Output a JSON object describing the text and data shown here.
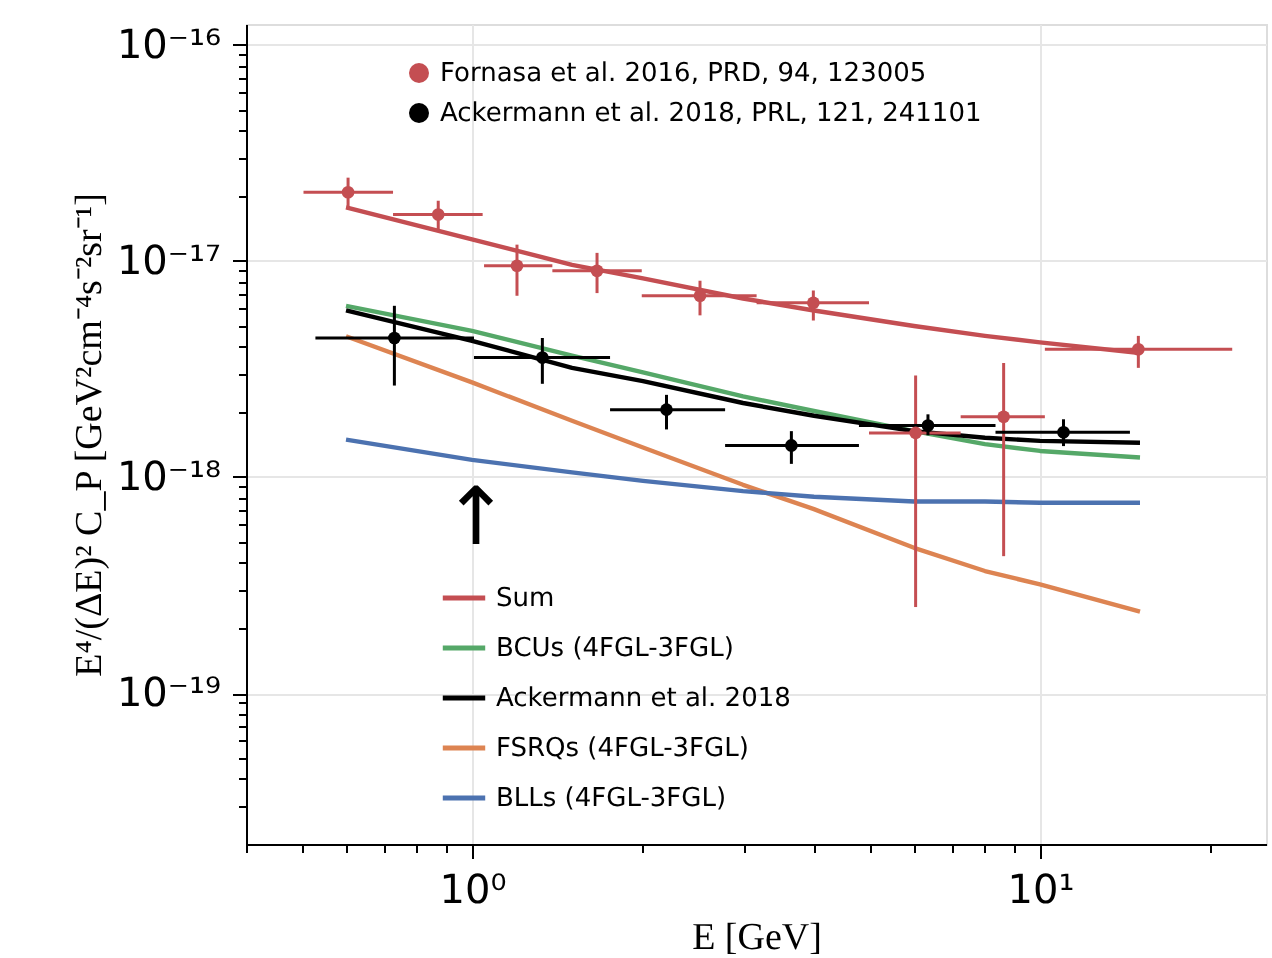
{
  "chart_data": {
    "type": "line",
    "xlabel": "E  [GeV]",
    "ylabel": "E⁴/(ΔE)² C_P  [GeV²cm⁻⁴s⁻²sr⁻¹]",
    "log": "xy",
    "grid": true,
    "legend": "bottom left",
    "xlim": [
      0.4,
      25
    ],
    "ylim": [
      2e-20,
      1.25e-16
    ],
    "xticks": [
      {
        "value": 0.4,
        "label": null
      },
      {
        "value": 0.5,
        "label": null
      },
      {
        "value": 0.6,
        "label": null
      },
      {
        "value": 0.7,
        "label": null
      },
      {
        "value": 0.8,
        "label": null
      },
      {
        "value": 0.9,
        "label": null
      },
      {
        "value": 1,
        "label": "10⁰"
      },
      {
        "value": 2,
        "label": null
      },
      {
        "value": 3,
        "label": null
      },
      {
        "value": 4,
        "label": null
      },
      {
        "value": 5,
        "label": null
      },
      {
        "value": 6,
        "label": null
      },
      {
        "value": 7,
        "label": null
      },
      {
        "value": 8,
        "label": null
      },
      {
        "value": 9,
        "label": null
      },
      {
        "value": 10,
        "label": "10¹"
      },
      {
        "value": 20,
        "label": null
      }
    ],
    "yticks": [
      {
        "value": 3e-20,
        "label": null
      },
      {
        "value": 4e-20,
        "label": null
      },
      {
        "value": 5e-20,
        "label": null
      },
      {
        "value": 6e-20,
        "label": null
      },
      {
        "value": 7e-20,
        "label": null
      },
      {
        "value": 8e-20,
        "label": null
      },
      {
        "value": 9e-20,
        "label": null
      },
      {
        "value": 1e-19,
        "label": "10⁻¹⁹"
      },
      {
        "value": 2e-19,
        "label": null
      },
      {
        "value": 3e-19,
        "label": null
      },
      {
        "value": 4e-19,
        "label": null
      },
      {
        "value": 5e-19,
        "label": null
      },
      {
        "value": 6e-19,
        "label": null
      },
      {
        "value": 7e-19,
        "label": null
      },
      {
        "value": 8e-19,
        "label": null
      },
      {
        "value": 9e-19,
        "label": null
      },
      {
        "value": 1e-18,
        "label": "10⁻¹⁸"
      },
      {
        "value": 2e-18,
        "label": null
      },
      {
        "value": 3e-18,
        "label": null
      },
      {
        "value": 4e-18,
        "label": null
      },
      {
        "value": 5e-18,
        "label": null
      },
      {
        "value": 6e-18,
        "label": null
      },
      {
        "value": 7e-18,
        "label": null
      },
      {
        "value": 8e-18,
        "label": null
      },
      {
        "value": 9e-18,
        "label": null
      },
      {
        "value": 1e-17,
        "label": "10⁻¹⁷"
      },
      {
        "value": 2e-17,
        "label": null
      },
      {
        "value": 3e-17,
        "label": null
      },
      {
        "value": 4e-17,
        "label": null
      },
      {
        "value": 5e-17,
        "label": null
      },
      {
        "value": 6e-17,
        "label": null
      },
      {
        "value": 7e-17,
        "label": null
      },
      {
        "value": 8e-17,
        "label": null
      },
      {
        "value": 9e-17,
        "label": null
      },
      {
        "value": 1e-16,
        "label": "10⁻¹⁶"
      }
    ],
    "annotations": [
      "↑"
    ],
    "series": [
      {
        "name": "Fornasa et al. 2016, PRD, 94, 123005",
        "type": "scatter",
        "marker": "circle",
        "color": "#c44e52",
        "x": [
          0.605,
          0.872,
          1.2,
          1.66,
          2.52,
          3.99,
          6.04,
          8.63,
          14.9
        ],
        "values": [
          2.08e-17,
          1.64e-17,
          9.5e-18,
          9e-18,
          6.9e-18,
          6.4e-18,
          1.6e-18,
          1.9e-18,
          3.9e-18
        ],
        "errors": [
          [
            1.77e-17,
            2.43e-17
          ],
          [
            1.38e-17,
            1.9e-17
          ],
          [
            6.9e-18,
            1.19e-17
          ],
          [
            7.1e-18,
            1.09e-17
          ],
          [
            5.6e-18,
            8.1e-18
          ],
          [
            5.3e-18,
            7.3e-18
          ],
          [
            2.5e-19,
            2.95e-18
          ],
          [
            4.3e-19,
            3.37e-18
          ],
          [
            3.2e-18,
            4.5e-18
          ]
        ],
        "xerrors": [
          [
            0.505,
            0.726
          ],
          [
            0.726,
            1.044
          ],
          [
            1.05,
            1.385
          ],
          [
            1.385,
            1.99
          ],
          [
            1.99,
            3.17
          ],
          [
            3.17,
            5.0
          ],
          [
            5.0,
            7.25
          ],
          [
            7.25,
            10.2
          ],
          [
            10.2,
            21.8
          ]
        ]
      },
      {
        "name": "Ackermann et al. 2018, PRL, 121, 241101",
        "type": "scatter",
        "marker": "circle",
        "color": "#000000",
        "x": [
          0.73,
          1.33,
          2.2,
          3.65,
          6.35,
          11.0
        ],
        "values": [
          4.4e-18,
          3.57e-18,
          2.05e-18,
          1.4e-18,
          1.73e-18,
          1.61e-18
        ],
        "errors": [
          [
            2.65e-18,
            6.2e-18
          ],
          [
            2.7e-18,
            4.4e-18
          ],
          [
            1.66e-18,
            2.4e-18
          ],
          [
            1.15e-18,
            1.63e-18
          ],
          [
            1.56e-18,
            1.95e-18
          ],
          [
            1.39e-18,
            1.85e-18
          ]
        ],
        "xerrors": [
          [
            0.53,
            1.008
          ],
          [
            1.008,
            1.75
          ],
          [
            1.75,
            2.79
          ],
          [
            2.79,
            4.8
          ],
          [
            4.8,
            8.35
          ],
          [
            8.35,
            14.4
          ]
        ]
      },
      {
        "name": "Sum",
        "color": "#c44e52",
        "x": [
          0.6,
          1,
          1.5,
          2,
          3,
          4,
          6,
          8,
          10,
          15
        ],
        "values": [
          1.77e-17,
          1.26e-17,
          9.6e-18,
          8.3e-18,
          6.7e-18,
          5.9e-18,
          5e-18,
          4.5e-18,
          4.2e-18,
          3.75e-18
        ]
      },
      {
        "name": "BCUs (4FGL-3FGL)",
        "color": "#55a868",
        "x": [
          0.6,
          1,
          1.5,
          2,
          3,
          4,
          6,
          8,
          10,
          15
        ],
        "values": [
          6.2e-18,
          4.75e-18,
          3.65e-18,
          3.05e-18,
          2.36e-18,
          2.02e-18,
          1.63e-18,
          1.42e-18,
          1.32e-18,
          1.23e-18
        ]
      },
      {
        "name": "Ackermann et al. 2018",
        "color": "#000000",
        "x": [
          0.6,
          1,
          1.5,
          2,
          3,
          4,
          6,
          8,
          10,
          15
        ],
        "values": [
          5.9e-18,
          4.27e-18,
          3.2e-18,
          2.78e-18,
          2.2e-18,
          1.92e-18,
          1.63e-18,
          1.52e-18,
          1.47e-18,
          1.44e-18
        ]
      },
      {
        "name": "FSRQs (4FGL-3FGL)",
        "color": "#dd8452",
        "x": [
          0.6,
          1,
          1.5,
          2,
          3,
          4,
          6,
          8,
          10,
          15
        ],
        "values": [
          4.48e-18,
          2.74e-18,
          1.82e-18,
          1.37e-18,
          9.2e-19,
          7.1e-19,
          4.7e-19,
          3.67e-19,
          3.18e-19,
          2.38e-19
        ]
      },
      {
        "name": "BLLs (4FGL-3FGL)",
        "color": "#4c72b0",
        "x": [
          0.6,
          1,
          1.5,
          2,
          3,
          4,
          6,
          8,
          10,
          15
        ],
        "values": [
          1.49e-18,
          1.2e-18,
          1.05e-18,
          9.6e-19,
          8.6e-19,
          8.1e-19,
          7.7e-19,
          7.7e-19,
          7.6e-19,
          7.6e-19
        ]
      }
    ]
  }
}
